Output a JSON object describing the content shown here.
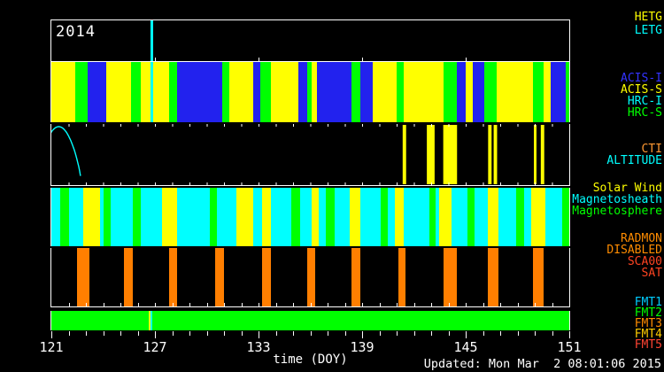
{
  "title_year": "2014",
  "updated": "Updated: Mon Mar  2 08:01:06 2015",
  "colors": {
    "yellow": "#ffff00",
    "green": "#00ff00",
    "blue": "#2222ee",
    "cyan": "#00ffff",
    "orange": "#ff7f00",
    "white": "#ffffff"
  },
  "chart_data": {
    "type": "timeline",
    "title": "Chandra observing schedule timeline, year 2014, DOY 121-151",
    "xlabel": "time (DOY)",
    "x_range": [
      121,
      151
    ],
    "x_major_ticks": [
      121,
      127,
      133,
      139,
      145,
      151
    ],
    "x_minor_step": 1,
    "bands": [
      {
        "id": "gratings",
        "labels": [
          {
            "text": "HETG",
            "color": "#ffff00"
          },
          {
            "text": "LETG",
            "color": "#00ffff"
          }
        ],
        "segments": [
          {
            "start": 126.72,
            "end": 126.88,
            "color": "cyan",
            "meaning": "LETG"
          }
        ]
      },
      {
        "id": "instruments",
        "labels": [
          {
            "text": "ACIS-I",
            "color": "#3333ff"
          },
          {
            "text": "ACIS-S",
            "color": "#ffff00"
          },
          {
            "text": "HRC-I",
            "color": "#00ffff"
          },
          {
            "text": "HRC-S",
            "color": "#00ff00"
          }
        ],
        "segments": [
          {
            "start": 121.0,
            "end": 122.4,
            "color": "yellow"
          },
          {
            "start": 122.4,
            "end": 123.1,
            "color": "green"
          },
          {
            "start": 123.1,
            "end": 124.2,
            "color": "blue"
          },
          {
            "start": 124.2,
            "end": 125.6,
            "color": "yellow"
          },
          {
            "start": 125.6,
            "end": 126.2,
            "color": "green"
          },
          {
            "start": 126.2,
            "end": 126.72,
            "color": "yellow"
          },
          {
            "start": 126.72,
            "end": 126.88,
            "color": "cyan"
          },
          {
            "start": 126.88,
            "end": 127.8,
            "color": "yellow"
          },
          {
            "start": 127.8,
            "end": 128.3,
            "color": "green"
          },
          {
            "start": 128.3,
            "end": 130.9,
            "color": "blue"
          },
          {
            "start": 130.9,
            "end": 131.3,
            "color": "green"
          },
          {
            "start": 131.3,
            "end": 132.7,
            "color": "yellow"
          },
          {
            "start": 132.7,
            "end": 133.1,
            "color": "blue"
          },
          {
            "start": 133.1,
            "end": 133.7,
            "color": "green"
          },
          {
            "start": 133.7,
            "end": 135.3,
            "color": "yellow"
          },
          {
            "start": 135.3,
            "end": 135.8,
            "color": "blue"
          },
          {
            "start": 135.8,
            "end": 136.1,
            "color": "green"
          },
          {
            "start": 136.1,
            "end": 136.4,
            "color": "yellow"
          },
          {
            "start": 136.4,
            "end": 138.4,
            "color": "blue"
          },
          {
            "start": 138.4,
            "end": 138.9,
            "color": "green"
          },
          {
            "start": 138.9,
            "end": 139.6,
            "color": "blue"
          },
          {
            "start": 139.6,
            "end": 141.0,
            "color": "yellow"
          },
          {
            "start": 141.0,
            "end": 141.4,
            "color": "green"
          },
          {
            "start": 141.4,
            "end": 143.7,
            "color": "yellow"
          },
          {
            "start": 143.7,
            "end": 144.5,
            "color": "green"
          },
          {
            "start": 144.5,
            "end": 145.0,
            "color": "blue"
          },
          {
            "start": 145.0,
            "end": 145.4,
            "color": "yellow"
          },
          {
            "start": 145.4,
            "end": 146.1,
            "color": "blue"
          },
          {
            "start": 146.1,
            "end": 146.8,
            "color": "green"
          },
          {
            "start": 146.8,
            "end": 148.9,
            "color": "yellow"
          },
          {
            "start": 148.9,
            "end": 149.5,
            "color": "green"
          },
          {
            "start": 149.5,
            "end": 149.9,
            "color": "yellow"
          },
          {
            "start": 149.9,
            "end": 150.8,
            "color": "blue"
          },
          {
            "start": 150.8,
            "end": 151.0,
            "color": "green"
          }
        ]
      },
      {
        "id": "orbit",
        "labels": [
          {
            "text": "CTI",
            "color": "#ff9933"
          },
          {
            "text": "ALTITUDE",
            "color": "#00ffff"
          }
        ],
        "curve_color": "#00ffff",
        "perigee_days": [
          122.74,
          125.41,
          128.03,
          130.64,
          133.31,
          135.92,
          138.59,
          141.21,
          143.87,
          146.49,
          149.15
        ],
        "orbit_period_days": 2.62,
        "cti_bars": [
          {
            "start": 141.35,
            "end": 141.55,
            "color": "yellow"
          },
          {
            "start": 142.75,
            "end": 143.2,
            "color": "yellow"
          },
          {
            "start": 143.7,
            "end": 144.5,
            "color": "yellow"
          },
          {
            "start": 146.3,
            "end": 146.5,
            "color": "yellow"
          },
          {
            "start": 146.62,
            "end": 146.82,
            "color": "yellow"
          },
          {
            "start": 148.95,
            "end": 149.1,
            "color": "yellow"
          },
          {
            "start": 149.35,
            "end": 149.55,
            "color": "yellow"
          }
        ]
      },
      {
        "id": "solar-wind-region",
        "labels": [
          {
            "text": "Solar Wind",
            "color": "#ffff00"
          },
          {
            "text": "Magnetosheath",
            "color": "#00ffff"
          },
          {
            "text": "Magnetosphere",
            "color": "#00ff00"
          }
        ],
        "base_color": "cyan",
        "stripes": [
          {
            "start": 121.5,
            "end": 122.0,
            "color": "green"
          },
          {
            "start": 122.85,
            "end": 123.8,
            "color": "yellow"
          },
          {
            "start": 124.05,
            "end": 124.45,
            "color": "green"
          },
          {
            "start": 125.7,
            "end": 126.2,
            "color": "green"
          },
          {
            "start": 127.4,
            "end": 128.3,
            "color": "yellow"
          },
          {
            "start": 130.2,
            "end": 130.6,
            "color": "green"
          },
          {
            "start": 131.7,
            "end": 132.7,
            "color": "yellow"
          },
          {
            "start": 133.2,
            "end": 133.7,
            "color": "yellow"
          },
          {
            "start": 134.9,
            "end": 135.4,
            "color": "green"
          },
          {
            "start": 136.1,
            "end": 136.5,
            "color": "yellow"
          },
          {
            "start": 136.9,
            "end": 137.4,
            "color": "green"
          },
          {
            "start": 138.3,
            "end": 138.9,
            "color": "yellow"
          },
          {
            "start": 140.1,
            "end": 140.5,
            "color": "green"
          },
          {
            "start": 140.9,
            "end": 141.4,
            "color": "yellow"
          },
          {
            "start": 142.9,
            "end": 143.25,
            "color": "green"
          },
          {
            "start": 143.45,
            "end": 144.2,
            "color": "yellow"
          },
          {
            "start": 145.1,
            "end": 145.5,
            "color": "green"
          },
          {
            "start": 146.3,
            "end": 146.9,
            "color": "yellow"
          },
          {
            "start": 147.9,
            "end": 148.4,
            "color": "green"
          },
          {
            "start": 148.8,
            "end": 149.6,
            "color": "yellow"
          },
          {
            "start": 150.6,
            "end": 151.0,
            "color": "green"
          }
        ]
      },
      {
        "id": "radmon",
        "labels": [
          {
            "text": "RADMON",
            "color": "#ff8c00"
          },
          {
            "text": "DISABLED",
            "color": "#ff8c00"
          },
          {
            "text": "SCA00",
            "color": "#ff4422"
          },
          {
            "text": "SAT",
            "color": "#ff4422"
          }
        ],
        "bar_color": "orange",
        "bars": [
          {
            "start": 122.5,
            "end": 123.2
          },
          {
            "start": 125.2,
            "end": 125.7
          },
          {
            "start": 127.8,
            "end": 128.3
          },
          {
            "start": 130.5,
            "end": 131.0
          },
          {
            "start": 133.2,
            "end": 133.7
          },
          {
            "start": 135.8,
            "end": 136.3
          },
          {
            "start": 138.4,
            "end": 138.9
          },
          {
            "start": 141.1,
            "end": 141.5
          },
          {
            "start": 143.7,
            "end": 144.5
          },
          {
            "start": 146.3,
            "end": 146.9
          },
          {
            "start": 148.9,
            "end": 149.5
          }
        ]
      },
      {
        "id": "fmt",
        "labels": [
          {
            "text": "FMT1",
            "color": "#00ccff"
          },
          {
            "text": "FMT2",
            "color": "#00ff00"
          },
          {
            "text": "FMT3",
            "color": "#ff8c00"
          },
          {
            "text": "FMT4",
            "color": "#ffcc00"
          },
          {
            "text": "FMT5",
            "color": "#ff4433"
          }
        ],
        "base_color": "green",
        "segments": [
          {
            "start": 126.62,
            "end": 126.72,
            "color": "yellow"
          },
          {
            "start": 126.72,
            "end": 126.85,
            "color": "cyan"
          }
        ]
      }
    ]
  }
}
